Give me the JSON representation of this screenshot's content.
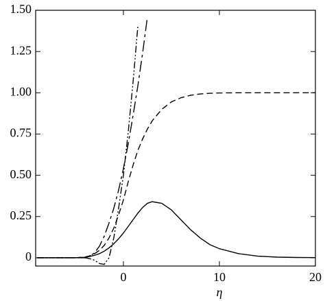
{
  "chart_data": {
    "type": "line",
    "x_label": "η",
    "xlim": [
      -9.14,
      20
    ],
    "ylim": [
      -0.05,
      1.5
    ],
    "xticks": [
      0,
      10,
      20
    ],
    "yticks": [
      0,
      {
        "value": 0.25,
        "label": "0.25"
      },
      {
        "value": 0.5,
        "label": "0.50"
      },
      {
        "value": 0.75,
        "label": "0.75"
      },
      {
        "value": 1,
        "label": "1.00"
      },
      {
        "value": 1.25,
        "label": "1.25"
      },
      {
        "value": 1.5,
        "label": "1.50"
      }
    ],
    "x": [
      -9,
      -8,
      -7,
      -6,
      -5,
      -4,
      -3.5,
      -3,
      -2.5,
      -2,
      -1.5,
      -1,
      -0.5,
      0,
      0.5,
      1,
      1.5,
      2,
      2.5,
      3,
      4,
      5,
      6,
      7,
      8,
      9,
      10,
      12,
      14,
      16,
      18,
      20
    ],
    "series": [
      {
        "color": "#000000",
        "dash": "solid",
        "values": [
          0,
          0,
          0,
          0,
          0,
          0.003,
          0.008,
          0.015,
          0.025,
          0.04,
          0.06,
          0.085,
          0.115,
          0.15,
          0.19,
          0.23,
          0.27,
          0.305,
          0.33,
          0.34,
          0.33,
          0.29,
          0.23,
          0.17,
          0.12,
          0.08,
          0.055,
          0.025,
          0.01,
          0.004,
          0.002,
          0.001
        ]
      },
      {
        "color": "#000000",
        "dash": "dashed",
        "values": [
          0,
          0,
          0,
          0,
          0,
          0.005,
          0.012,
          0.025,
          0.045,
          0.075,
          0.12,
          0.18,
          0.26,
          0.35,
          0.46,
          0.56,
          0.65,
          0.72,
          0.78,
          0.83,
          0.9,
          0.945,
          0.97,
          0.985,
          0.993,
          0.997,
          0.999,
          1,
          1,
          1,
          1,
          1
        ]
      },
      {
        "color": "#000000",
        "dash": "longdash",
        "values": [
          0,
          0,
          0,
          0,
          0,
          0,
          0.01,
          0.03,
          0.07,
          0.13,
          0.21,
          0.3,
          0.41,
          0.54,
          0.69,
          0.86,
          1.04,
          1.24,
          1.46,
          null,
          null,
          null,
          null,
          null,
          null,
          null,
          null,
          null,
          null,
          null,
          null,
          null
        ]
      },
      {
        "color": "#000000",
        "dash": "dashdotdot",
        "values": [
          0,
          0,
          0,
          0,
          0,
          0,
          -0.005,
          -0.015,
          -0.035,
          -0.04,
          0,
          0.12,
          0.3,
          0.5,
          0.76,
          1.06,
          1.4,
          null,
          null,
          null,
          null,
          null,
          null,
          null,
          null,
          null,
          null,
          null,
          null,
          null,
          null,
          null
        ]
      }
    ]
  }
}
